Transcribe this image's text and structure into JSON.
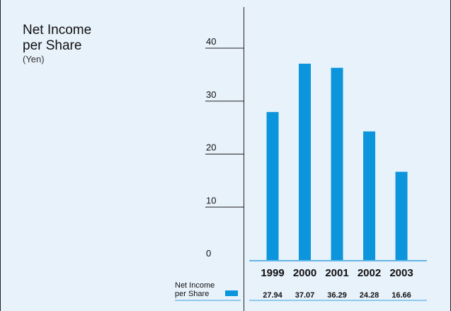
{
  "title": {
    "line1": "Net Income",
    "line2": "per Share",
    "unit": "(Yen)"
  },
  "colors": {
    "background": "#e8f2fb",
    "bar": "#0b95dc",
    "frame": "#222222",
    "axis_line": "#3aa0de"
  },
  "chart_data": {
    "type": "bar",
    "title": "Net Income per Share",
    "ylabel": "(Yen)",
    "xlabel": "",
    "categories": [
      "1999",
      "2000",
      "2001",
      "2002",
      "2003"
    ],
    "series": [
      {
        "name": "Net Income per Share",
        "values": [
          27.94,
          37.07,
          36.29,
          24.28,
          16.66
        ]
      }
    ],
    "yticks": [
      0,
      10,
      20,
      30,
      40
    ],
    "ylim": [
      0,
      40
    ],
    "grid": false,
    "legend": "bottom-left",
    "legend_label_lines": [
      "Net Income",
      "per Share"
    ],
    "value_labels": [
      "27.94",
      "37.07",
      "36.29",
      "24.28",
      "16.66"
    ]
  }
}
